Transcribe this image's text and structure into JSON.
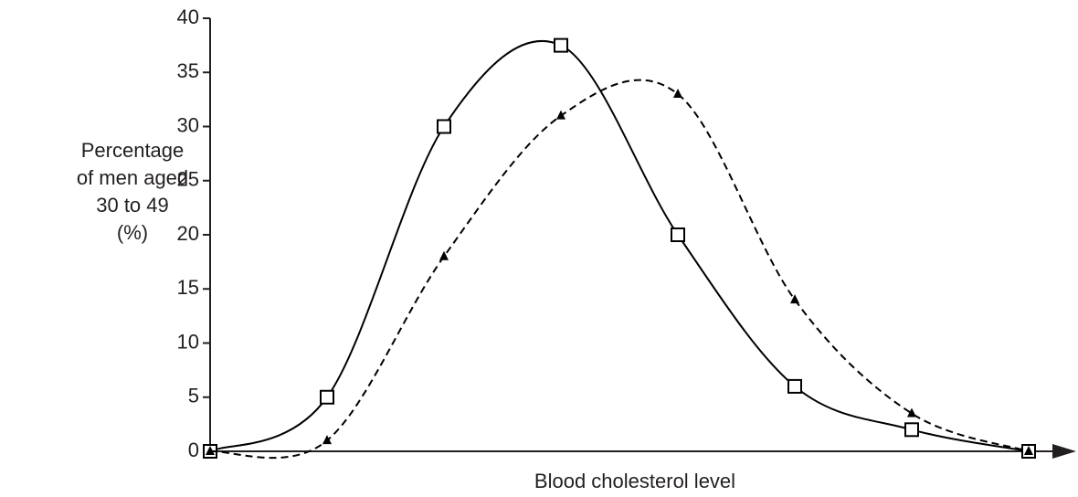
{
  "chart_data": {
    "type": "line",
    "ylabel": [
      "Percentage",
      "of men aged",
      "30 to 49",
      "(%)"
    ],
    "xlabel": "Blood cholesterol level",
    "categories": [
      null,
      null,
      null,
      null,
      null,
      null,
      null,
      null
    ],
    "series": [
      {
        "color": "#000000",
        "dash": false,
        "marker": "square",
        "values": [
          0,
          5,
          30,
          37.5,
          20,
          6,
          2,
          0
        ]
      },
      {
        "color": "#000000",
        "dash": true,
        "marker": "triangle",
        "values": [
          0,
          1,
          18,
          31,
          33,
          14,
          3.5,
          0
        ]
      }
    ],
    "ylim": [
      0,
      40
    ],
    "yticks": [
      0,
      5,
      10,
      15,
      20,
      25,
      30,
      35,
      40
    ]
  }
}
